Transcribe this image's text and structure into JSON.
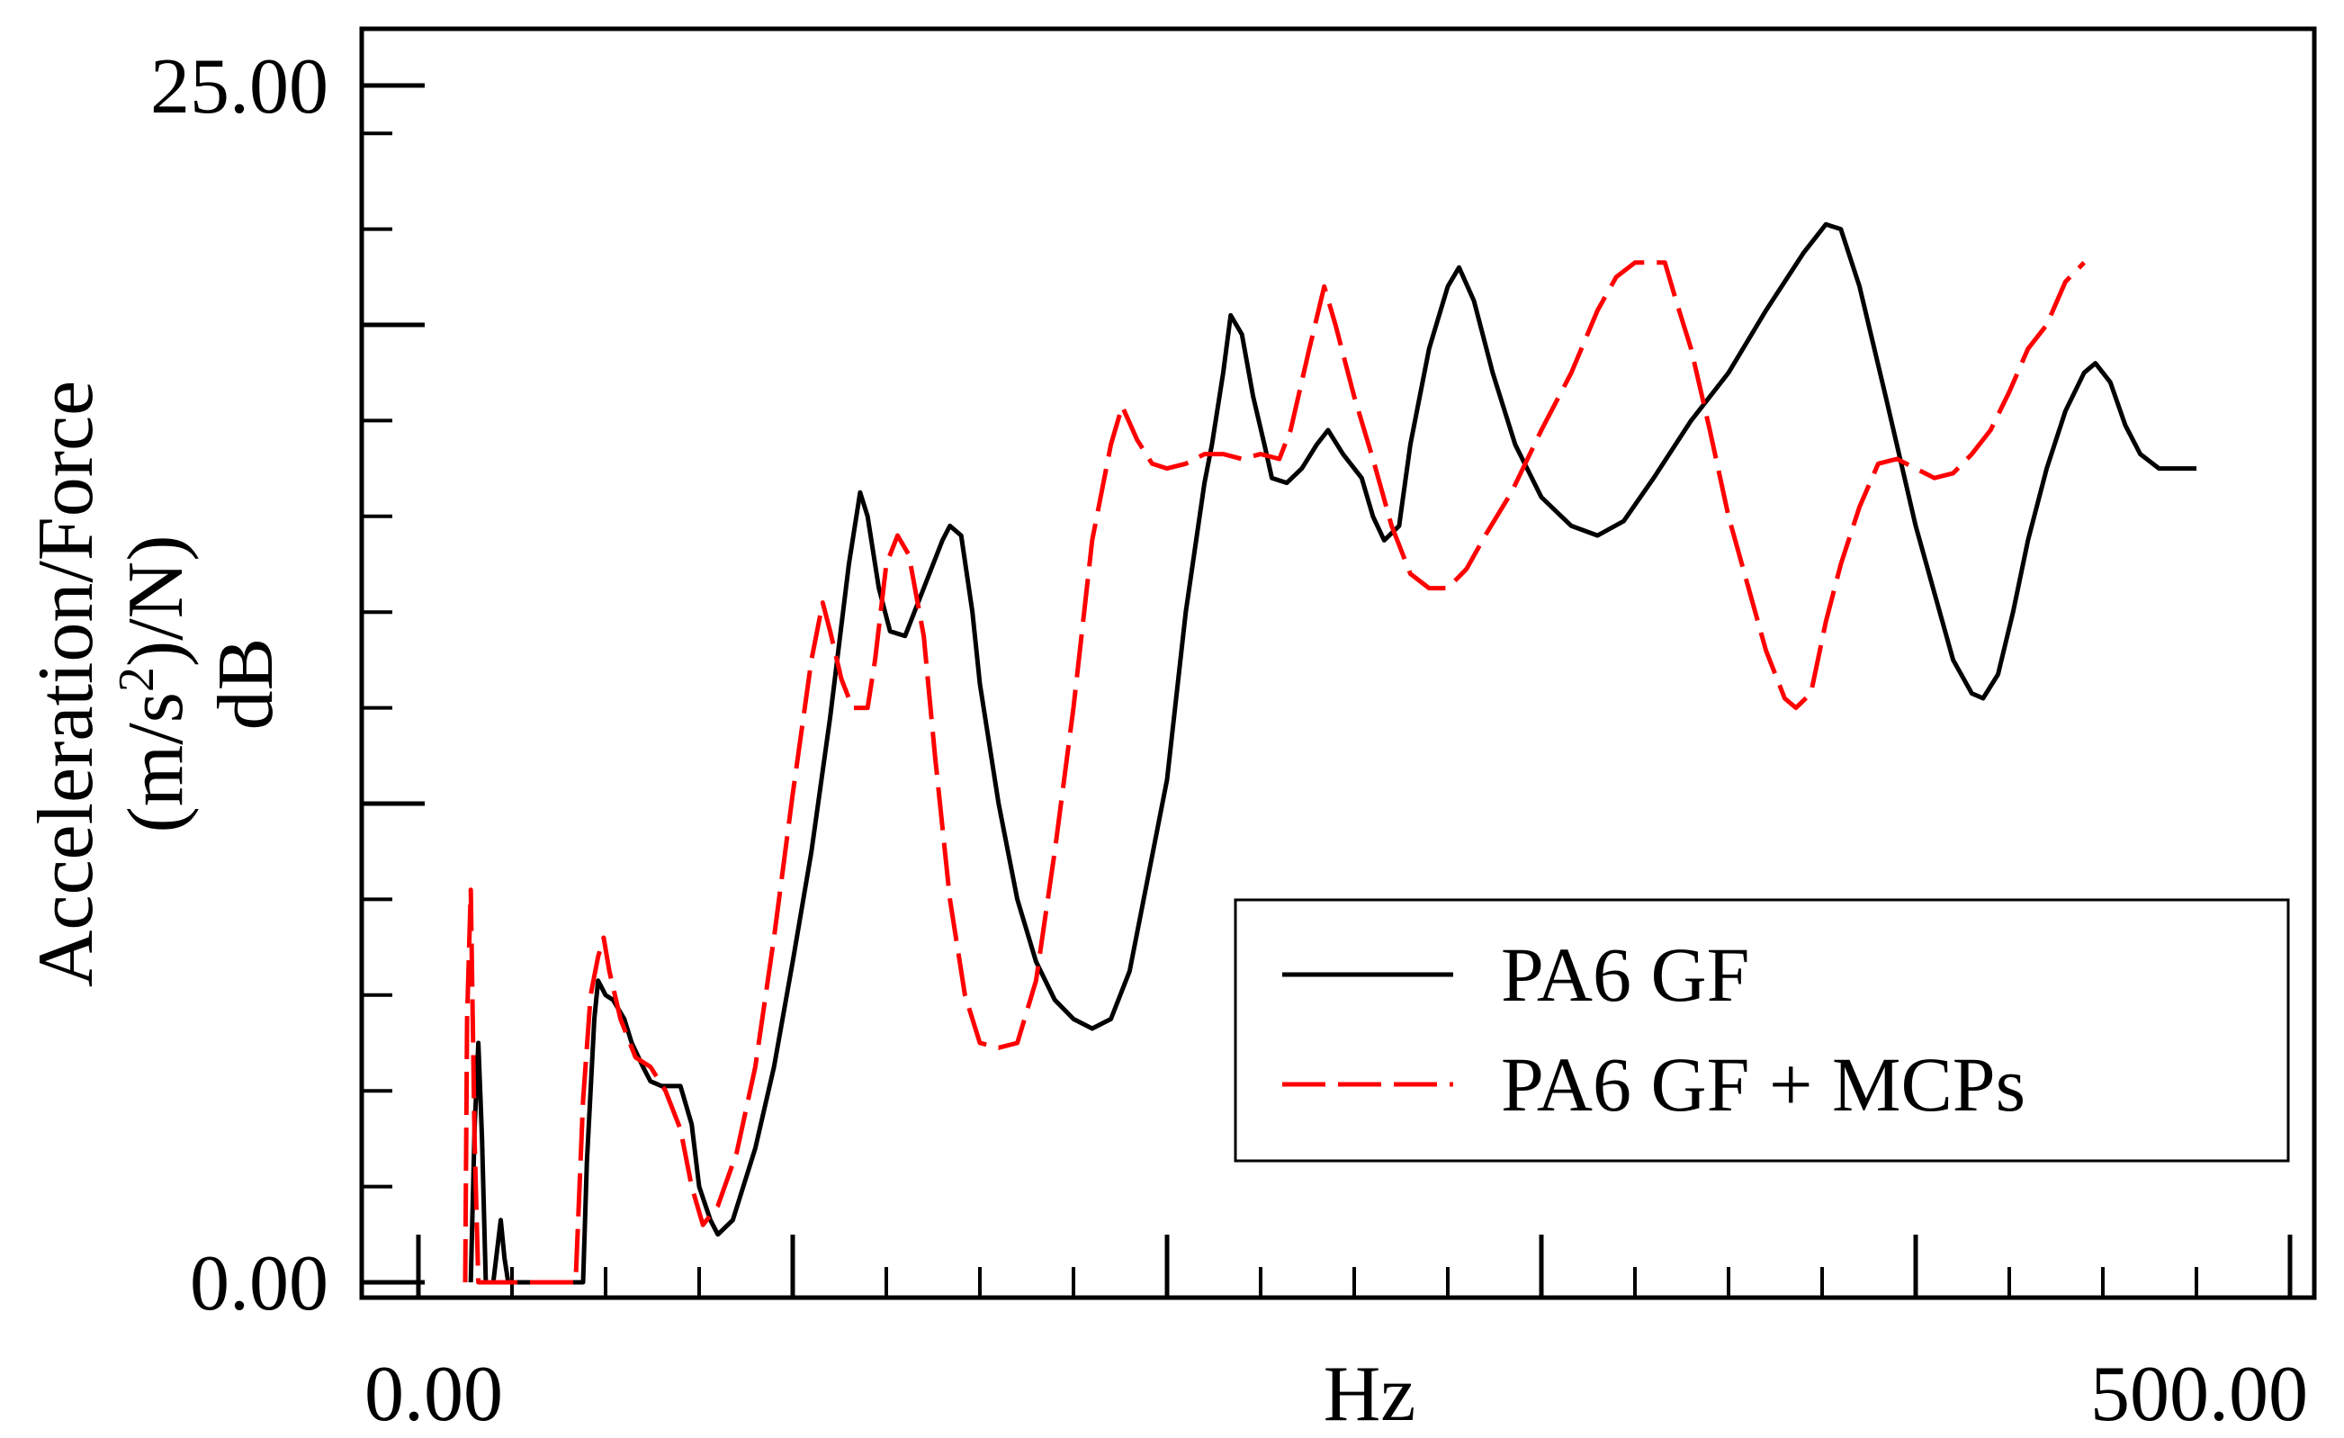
{
  "chart_data": {
    "type": "line",
    "title": "",
    "xlabel": "Hz",
    "ylabel_lines": [
      "Acceleration/Force",
      "(m/s²)/N)",
      "dB"
    ],
    "ylabel_parts": {
      "line2_prefix": "(m/s",
      "line2_sup": "2",
      "line2_suffix": ")/N)"
    },
    "xlim": [
      0,
      500
    ],
    "ylim": [
      0,
      25
    ],
    "x_tick_labels": [
      {
        "value": 0,
        "label": "0.00"
      },
      {
        "value": 500,
        "label": "500.00"
      }
    ],
    "y_tick_labels": [
      {
        "value": 0,
        "label": "0.00"
      },
      {
        "value": 25,
        "label": "25.00"
      }
    ],
    "x_major_ticks": [
      0,
      100,
      200,
      300,
      400,
      500
    ],
    "x_minor_step": 25,
    "y_major_ticks": [
      0,
      10,
      20,
      25
    ],
    "y_minor_ticks": [
      2,
      4,
      6,
      8,
      12,
      14,
      16,
      18,
      22,
      24
    ],
    "legend": {
      "placement": "bottom-right"
    },
    "series": [
      {
        "name": "PA6 GF",
        "color": "#000000",
        "dash": "solid",
        "points": [
          [
            14,
            0
          ],
          [
            15,
            3.2
          ],
          [
            16,
            5
          ],
          [
            17,
            3
          ],
          [
            18,
            0
          ],
          [
            20,
            0
          ],
          [
            22,
            1.3
          ],
          [
            23,
            0.5
          ],
          [
            24,
            0
          ],
          [
            44,
            0
          ],
          [
            45,
            2.5
          ],
          [
            47,
            5.5
          ],
          [
            48,
            6.3
          ],
          [
            50,
            6
          ],
          [
            52,
            5.9
          ],
          [
            55,
            5.5
          ],
          [
            57,
            5
          ],
          [
            60,
            4.5
          ],
          [
            62,
            4.2
          ],
          [
            65,
            4.1
          ],
          [
            70,
            4.1
          ],
          [
            73,
            3.3
          ],
          [
            75,
            2
          ],
          [
            78,
            1.3
          ],
          [
            80,
            1
          ],
          [
            84,
            1.3
          ],
          [
            90,
            2.8
          ],
          [
            95,
            4.5
          ],
          [
            100,
            6.7
          ],
          [
            105,
            9
          ],
          [
            110,
            11.8
          ],
          [
            115,
            15
          ],
          [
            118,
            16.5
          ],
          [
            120,
            16
          ],
          [
            123,
            14.5
          ],
          [
            126,
            13.6
          ],
          [
            130,
            13.5
          ],
          [
            135,
            14.5
          ],
          [
            140,
            15.5
          ],
          [
            142,
            15.8
          ],
          [
            145,
            15.6
          ],
          [
            148,
            14
          ],
          [
            150,
            12.5
          ],
          [
            155,
            10
          ],
          [
            160,
            8
          ],
          [
            165,
            6.7
          ],
          [
            170,
            5.9
          ],
          [
            175,
            5.5
          ],
          [
            180,
            5.3
          ],
          [
            185,
            5.5
          ],
          [
            190,
            6.5
          ],
          [
            195,
            8.5
          ],
          [
            200,
            10.5
          ],
          [
            205,
            14
          ],
          [
            210,
            16.7
          ],
          [
            212,
            17.5
          ],
          [
            215,
            19
          ],
          [
            217,
            20.2
          ],
          [
            220,
            19.8
          ],
          [
            223,
            18.5
          ],
          [
            226,
            17.5
          ],
          [
            228,
            16.8
          ],
          [
            232,
            16.7
          ],
          [
            236,
            17
          ],
          [
            240,
            17.5
          ],
          [
            243,
            17.8
          ],
          [
            247,
            17.3
          ],
          [
            252,
            16.8
          ],
          [
            255,
            16
          ],
          [
            258,
            15.5
          ],
          [
            262,
            15.8
          ],
          [
            265,
            17.5
          ],
          [
            270,
            19.5
          ],
          [
            275,
            20.8
          ],
          [
            278,
            21.2
          ],
          [
            282,
            20.5
          ],
          [
            287,
            19
          ],
          [
            293,
            17.5
          ],
          [
            300,
            16.4
          ],
          [
            308,
            15.8
          ],
          [
            315,
            15.6
          ],
          [
            322,
            15.9
          ],
          [
            330,
            16.8
          ],
          [
            340,
            18
          ],
          [
            350,
            19
          ],
          [
            360,
            20.3
          ],
          [
            370,
            21.5
          ],
          [
            376,
            22.1
          ],
          [
            380,
            22
          ],
          [
            385,
            20.8
          ],
          [
            392,
            18.5
          ],
          [
            400,
            15.8
          ],
          [
            405,
            14.4
          ],
          [
            410,
            13
          ],
          [
            415,
            12.3
          ],
          [
            418,
            12.2
          ],
          [
            422,
            12.7
          ],
          [
            426,
            14
          ],
          [
            430,
            15.5
          ],
          [
            435,
            17
          ],
          [
            440,
            18.2
          ],
          [
            445,
            19
          ],
          [
            448,
            19.2
          ],
          [
            452,
            18.8
          ],
          [
            456,
            17.9
          ],
          [
            460,
            17.3
          ],
          [
            465,
            17
          ],
          [
            470,
            17
          ],
          [
            475,
            17
          ]
        ]
      },
      {
        "name": "PA6 GF + MCPs",
        "color": "#ff0000",
        "dash": "dashed",
        "points": [
          [
            12.5,
            0
          ],
          [
            13,
            5.5
          ],
          [
            14,
            8.2
          ],
          [
            15,
            3
          ],
          [
            16,
            0
          ],
          [
            42,
            0
          ],
          [
            44,
            3.8
          ],
          [
            46,
            6
          ],
          [
            48,
            6.8
          ],
          [
            49.5,
            7.2
          ],
          [
            51,
            6.5
          ],
          [
            54,
            5.5
          ],
          [
            58,
            4.7
          ],
          [
            62,
            4.5
          ],
          [
            66,
            4
          ],
          [
            70,
            3.2
          ],
          [
            73,
            2
          ],
          [
            76,
            1.2
          ],
          [
            80,
            1.6
          ],
          [
            85,
            2.7
          ],
          [
            90,
            4.5
          ],
          [
            95,
            7.2
          ],
          [
            100,
            10.2
          ],
          [
            105,
            13
          ],
          [
            108,
            14.2
          ],
          [
            110,
            13.6
          ],
          [
            113,
            12.6
          ],
          [
            116,
            12
          ],
          [
            120,
            12
          ],
          [
            122,
            13
          ],
          [
            125,
            15
          ],
          [
            128,
            15.6
          ],
          [
            131,
            15.2
          ],
          [
            135,
            13.5
          ],
          [
            138,
            11
          ],
          [
            142,
            8
          ],
          [
            146,
            6
          ],
          [
            150,
            5
          ],
          [
            155,
            4.9
          ],
          [
            160,
            5
          ],
          [
            165,
            6.3
          ],
          [
            170,
            9
          ],
          [
            175,
            12
          ],
          [
            180,
            15.5
          ],
          [
            185,
            17.5
          ],
          [
            188,
            18.3
          ],
          [
            192,
            17.6
          ],
          [
            196,
            17.1
          ],
          [
            200,
            17
          ],
          [
            205,
            17.1
          ],
          [
            210,
            17.3
          ],
          [
            215,
            17.3
          ],
          [
            220,
            17.2
          ],
          [
            225,
            17.3
          ],
          [
            230,
            17.2
          ],
          [
            233,
            17.8
          ],
          [
            238,
            19.5
          ],
          [
            242,
            20.8
          ],
          [
            245,
            20
          ],
          [
            250,
            18.5
          ],
          [
            255,
            17.2
          ],
          [
            260,
            15.8
          ],
          [
            265,
            14.8
          ],
          [
            270,
            14.5
          ],
          [
            275,
            14.5
          ],
          [
            280,
            14.9
          ],
          [
            285,
            15.6
          ],
          [
            292,
            16.5
          ],
          [
            300,
            17.8
          ],
          [
            308,
            19
          ],
          [
            315,
            20.3
          ],
          [
            320,
            21
          ],
          [
            325,
            21.3
          ],
          [
            330,
            21.3
          ],
          [
            333,
            21.3
          ],
          [
            336,
            20.5
          ],
          [
            340,
            19.5
          ],
          [
            345,
            17.8
          ],
          [
            350,
            16
          ],
          [
            355,
            14.6
          ],
          [
            360,
            13.2
          ],
          [
            365,
            12.2
          ],
          [
            368,
            12
          ],
          [
            372,
            12.3
          ],
          [
            376,
            13.8
          ],
          [
            380,
            15
          ],
          [
            385,
            16.2
          ],
          [
            390,
            17.1
          ],
          [
            395,
            17.2
          ],
          [
            400,
            17
          ],
          [
            405,
            16.8
          ],
          [
            410,
            16.9
          ],
          [
            415,
            17.3
          ],
          [
            420,
            17.8
          ],
          [
            425,
            18.6
          ],
          [
            430,
            19.5
          ],
          [
            435,
            20
          ],
          [
            440,
            20.9
          ],
          [
            445,
            21.3
          ]
        ]
      }
    ]
  }
}
